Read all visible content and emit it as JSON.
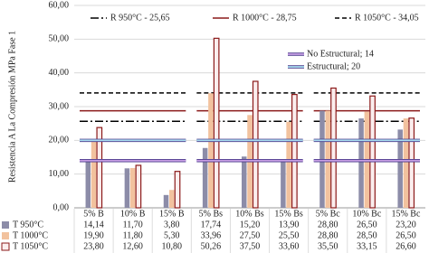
{
  "chart_data": {
    "type": "bar",
    "y_label": "Resistencia A La Compresión MPa Fase 1",
    "categories": [
      "5% B",
      "10% B",
      "15% B",
      "5% Bs",
      "10% Bs",
      "15% Bs",
      "5% Bc",
      "10% Bc",
      "15% Bc"
    ],
    "series": [
      {
        "name": "T 950°C",
        "color": "#8c8ca8",
        "values": [
          14.14,
          11.7,
          3.8,
          17.74,
          15.2,
          13.9,
          28.8,
          26.5,
          23.2
        ],
        "value_labels": [
          "14,14",
          "11,70",
          "3,80",
          "17,74",
          "15,20",
          "13,90",
          "28,80",
          "26,50",
          "23,20"
        ]
      },
      {
        "name": "T 1000°C",
        "color": "#f2c29e",
        "values": [
          19.9,
          11.8,
          5.3,
          33.96,
          27.5,
          25.5,
          28.8,
          28.5,
          26.5
        ],
        "value_labels": [
          "19,90",
          "11,80",
          "5,30",
          "33,96",
          "27,50",
          "25,50",
          "28,80",
          "28,50",
          "26,50"
        ]
      },
      {
        "name": "T 1050°C",
        "color": "#8b1a1a",
        "values": [
          23.8,
          12.6,
          10.8,
          50.26,
          37.5,
          33.6,
          35.5,
          33.15,
          26.6
        ],
        "value_labels": [
          "23,80",
          "12,60",
          "10,80",
          "50,26",
          "37,50",
          "33,60",
          "35,50",
          "33,15",
          "26,60"
        ]
      }
    ],
    "reference_lines": [
      {
        "name": "R 950°C - 25,65",
        "value": 25.65,
        "color": "#000000",
        "style": "dashdot"
      },
      {
        "name": "R 1000°C - 28,75",
        "value": 28.75,
        "color": "#8b1a1a",
        "style": "solid"
      },
      {
        "name": "R 1050°C - 34,05",
        "value": 34.05,
        "color": "#000000",
        "style": "dashed"
      }
    ],
    "limit_lines": [
      {
        "name": "No Estructural; 14",
        "value": 14,
        "color": "#c9a0e6"
      },
      {
        "name": "Estructural; 20",
        "value": 20,
        "color": "#a8dcf0"
      }
    ],
    "ylim": [
      0,
      60
    ],
    "yticks": [
      {
        "value": 0,
        "label": "0,00"
      },
      {
        "value": 10,
        "label": "10,00"
      },
      {
        "value": 20,
        "label": "20,00"
      },
      {
        "value": 30,
        "label": "30,00"
      },
      {
        "value": 40,
        "label": "40,00"
      },
      {
        "value": 50,
        "label": "50,00"
      },
      {
        "value": 60,
        "label": "60,00"
      }
    ],
    "grid": true
  }
}
